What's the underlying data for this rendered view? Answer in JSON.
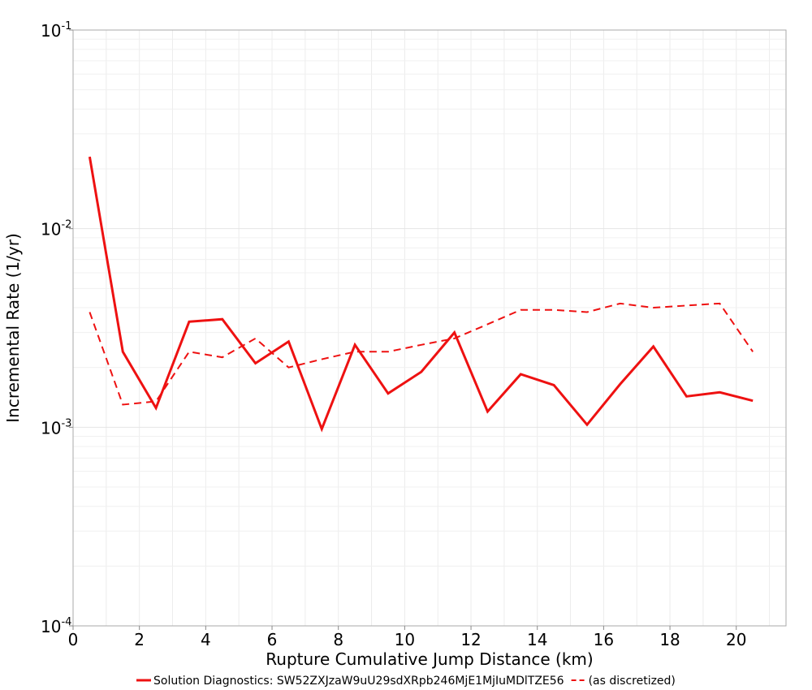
{
  "chart_data": {
    "type": "line",
    "xlabel": "Rupture Cumulative Jump Distance (km)",
    "ylabel": "Incremental Rate (1/yr)",
    "xlim": [
      0,
      21.5
    ],
    "ylim": [
      0.0001,
      0.1
    ],
    "y_scale": "log",
    "grid": true,
    "legend_position": "bottom",
    "x_ticks": [
      0,
      2,
      4,
      6,
      8,
      10,
      12,
      14,
      16,
      18,
      20
    ],
    "x_tick_labels": [
      "0",
      "2",
      "4",
      "6",
      "8",
      "10",
      "12",
      "14",
      "16",
      "18",
      "20"
    ],
    "y_ticks": [
      {
        "value": 0.1,
        "base": "10",
        "exp": "-1"
      },
      {
        "value": 0.01,
        "base": "10",
        "exp": "-2"
      },
      {
        "value": 0.001,
        "base": "10",
        "exp": "-3"
      },
      {
        "value": 0.0001,
        "base": "10",
        "exp": "-4"
      }
    ],
    "x": [
      0.5,
      1.5,
      2.5,
      3.5,
      4.5,
      5.5,
      6.5,
      7.5,
      8.5,
      9.5,
      10.5,
      11.5,
      12.5,
      13.5,
      14.5,
      15.5,
      16.5,
      17.5,
      18.5,
      19.5,
      20.5
    ],
    "series": [
      {
        "name": "Solution Diagnostics: SW52ZXJzaW9uU29sdXRpb246MjE1MjIuMDlTZE56",
        "style": "solid",
        "color": "#ee1111",
        "values": [
          0.023,
          0.0024,
          0.00125,
          0.0034,
          0.0035,
          0.0021,
          0.0027,
          0.00098,
          0.0026,
          0.00148,
          0.0019,
          0.003,
          0.0012,
          0.00185,
          0.00163,
          0.00103,
          0.00165,
          0.00255,
          0.00143,
          0.0015,
          0.00136
        ]
      },
      {
        "name": "(as discretized)",
        "style": "dashed",
        "color": "#ee1111",
        "values": [
          0.0038,
          0.0013,
          0.00135,
          0.0024,
          0.00225,
          0.0028,
          0.002,
          0.0022,
          0.0024,
          0.0024,
          0.0026,
          0.0028,
          0.0033,
          0.0039,
          0.0039,
          0.0038,
          0.0042,
          0.004,
          0.0041,
          0.0042,
          0.0024
        ]
      }
    ]
  }
}
